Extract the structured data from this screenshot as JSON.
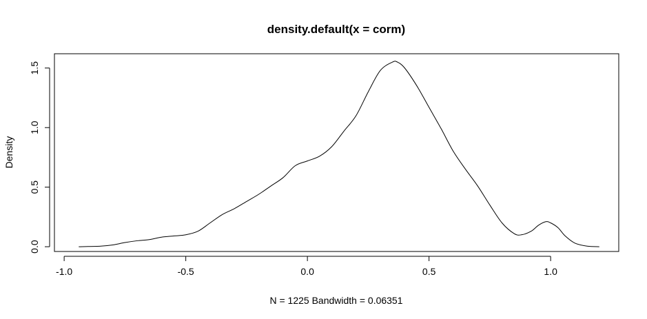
{
  "chart_data": {
    "type": "line",
    "title": "density.default(x = corm)",
    "xlabel": "N = 1225   Bandwidth = 0.06351",
    "ylabel": "Density",
    "xlim": [
      -1.04,
      1.28
    ],
    "ylim": [
      -0.04,
      1.62
    ],
    "x_ticks": [
      -1.0,
      -0.5,
      0.0,
      0.5,
      1.0
    ],
    "x_tick_labels": [
      "-1.0",
      "-0.5",
      "0.0",
      "0.5",
      "1.0"
    ],
    "y_ticks": [
      0.0,
      0.5,
      1.0,
      1.5
    ],
    "y_tick_labels": [
      "0.0",
      "0.5",
      "1.0",
      "1.5"
    ],
    "grid": false,
    "legend": "none",
    "line_color": "#000000",
    "series": [
      {
        "x": [
          -0.94,
          -0.85,
          -0.8,
          -0.75,
          -0.7,
          -0.65,
          -0.6,
          -0.55,
          -0.5,
          -0.45,
          -0.4,
          -0.35,
          -0.3,
          -0.25,
          -0.2,
          -0.15,
          -0.1,
          -0.05,
          0.0,
          0.05,
          0.1,
          0.15,
          0.2,
          0.25,
          0.3,
          0.35,
          0.37,
          0.4,
          0.45,
          0.5,
          0.55,
          0.6,
          0.65,
          0.7,
          0.75,
          0.8,
          0.85,
          0.88,
          0.92,
          0.95,
          0.98,
          1.0,
          1.03,
          1.06,
          1.1,
          1.15,
          1.2
        ],
        "y": [
          0.0,
          0.005,
          0.015,
          0.035,
          0.05,
          0.06,
          0.08,
          0.09,
          0.1,
          0.13,
          0.2,
          0.27,
          0.32,
          0.38,
          0.44,
          0.51,
          0.58,
          0.68,
          0.72,
          0.76,
          0.84,
          0.97,
          1.1,
          1.3,
          1.48,
          1.55,
          1.55,
          1.5,
          1.35,
          1.17,
          0.99,
          0.8,
          0.65,
          0.51,
          0.35,
          0.2,
          0.11,
          0.1,
          0.13,
          0.18,
          0.21,
          0.2,
          0.16,
          0.09,
          0.03,
          0.005,
          0.0
        ]
      }
    ]
  }
}
